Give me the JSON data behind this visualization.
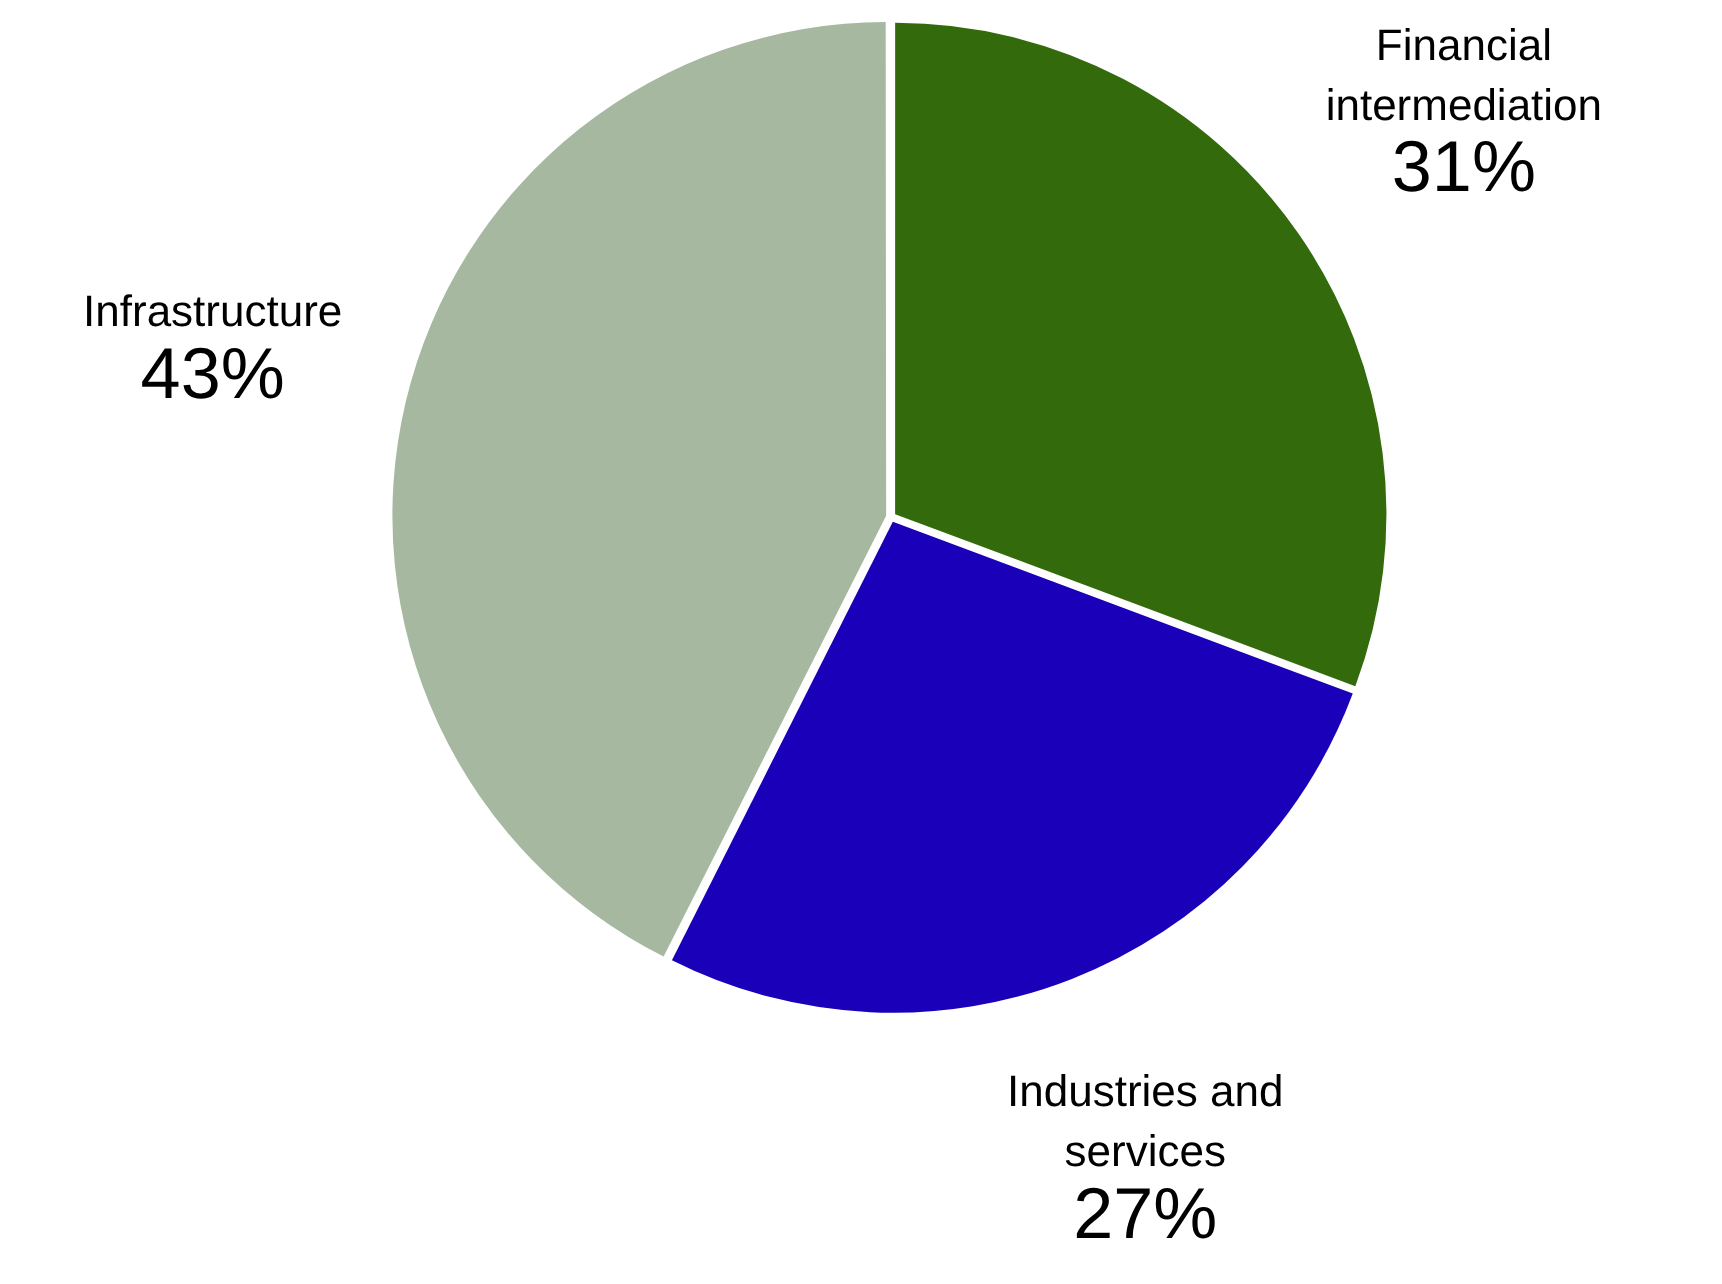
{
  "chart_data": {
    "type": "pie",
    "categories": [
      "Financial intermediation",
      "Industries and services",
      "Infrastructure"
    ],
    "values": [
      31,
      27,
      43
    ],
    "colors": [
      "#336a0b",
      "#1a00b8",
      "#a6b9a0"
    ],
    "value_labels": [
      "31%",
      "27%",
      "43%"
    ],
    "legend": false
  }
}
